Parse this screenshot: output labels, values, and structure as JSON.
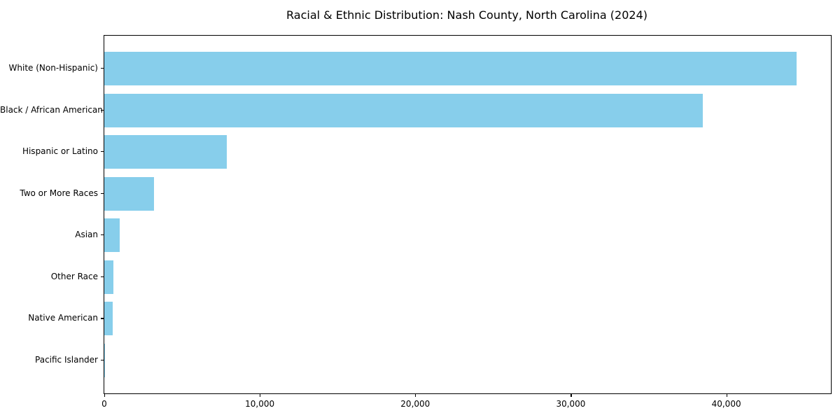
{
  "chart_data": {
    "type": "bar",
    "orientation": "horizontal",
    "title": "Racial & Ethnic Distribution: Nash County, North Carolina (2024)",
    "categories": [
      "White (Non-Hispanic)",
      "Black / African American",
      "Hispanic or Latino",
      "Two or More Races",
      "Asian",
      "Other Race",
      "Native American",
      "Pacific Islander"
    ],
    "values": [
      44500,
      38500,
      7900,
      3200,
      1000,
      570,
      530,
      50
    ],
    "xlabel": "",
    "ylabel": "",
    "xlim": [
      0,
      46725
    ],
    "x_ticks": [
      0,
      10000,
      20000,
      30000,
      40000
    ],
    "x_tick_labels": [
      "0",
      "10,000",
      "20,000",
      "30,000",
      "40,000"
    ],
    "grid": false,
    "legend": null,
    "bar_color": "#87CEEB",
    "frame_color": "#000000",
    "text_color": "#000000",
    "background_color": "#ffffff"
  }
}
